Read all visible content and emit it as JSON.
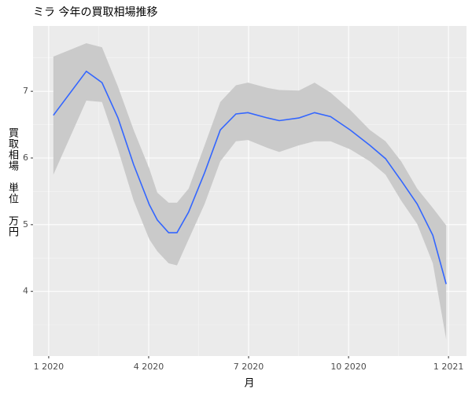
{
  "chart_data": {
    "type": "smooth",
    "title": "ミラ 今年の買取相場推移",
    "x_label": "月",
    "y_label": "買取相場　単位　万円",
    "x": [
      0.14,
      1.13,
      1.6,
      2.08,
      2.55,
      3.02,
      3.26,
      3.6,
      3.85,
      4.2,
      4.68,
      5.15,
      5.62,
      5.98,
      6.57,
      6.92,
      7.51,
      7.98,
      8.46,
      9.05,
      9.64,
      10.11,
      10.58,
      11.06,
      11.53,
      11.93
    ],
    "series": [
      {
        "color": "#3366ff",
        "values": [
          6.64,
          7.3,
          7.13,
          6.6,
          5.9,
          5.3,
          5.07,
          4.88,
          4.88,
          5.19,
          5.78,
          6.42,
          6.66,
          6.68,
          6.6,
          6.56,
          6.6,
          6.68,
          6.62,
          6.42,
          6.19,
          5.99,
          5.66,
          5.31,
          4.84,
          4.11
        ],
        "lower": [
          5.75,
          6.86,
          6.84,
          6.13,
          5.36,
          4.78,
          4.6,
          4.42,
          4.39,
          4.78,
          5.31,
          5.95,
          6.25,
          6.27,
          6.15,
          6.09,
          6.19,
          6.25,
          6.25,
          6.13,
          5.95,
          5.75,
          5.36,
          5.01,
          4.42,
          3.28
        ],
        "upper": [
          7.52,
          7.72,
          7.66,
          7.07,
          6.42,
          5.84,
          5.48,
          5.33,
          5.33,
          5.54,
          6.19,
          6.84,
          7.09,
          7.13,
          7.05,
          7.02,
          7.01,
          7.13,
          6.98,
          6.72,
          6.42,
          6.25,
          5.95,
          5.54,
          5.25,
          4.99
        ],
        "band_color": "#cacaca"
      }
    ],
    "xlim": [
      -0.47,
      12.54
    ],
    "xticks": [
      {
        "value": 0,
        "label": "1 2020"
      },
      {
        "value": 3,
        "label": "4 2020"
      },
      {
        "value": 6,
        "label": "7 2020"
      },
      {
        "value": 9,
        "label": "10 2020"
      },
      {
        "value": 12,
        "label": "1 2021"
      }
    ],
    "ylim": [
      3.03,
      7.98
    ],
    "yticks": [
      4,
      5,
      6,
      7
    ],
    "grid": true
  }
}
